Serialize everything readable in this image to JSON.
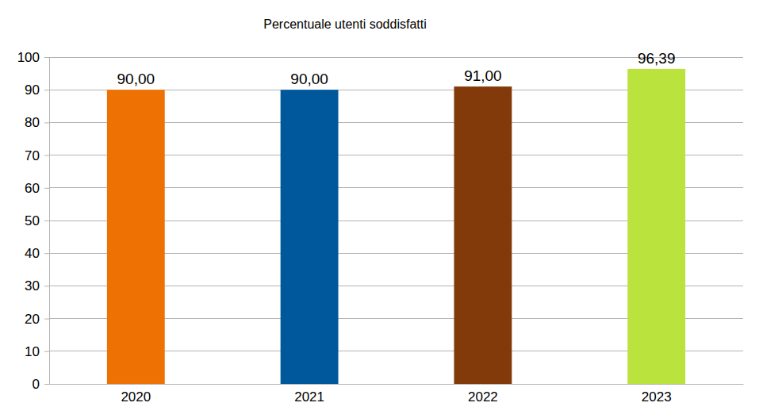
{
  "chart_data": {
    "type": "bar",
    "title": "Percentuale utenti soddisfatti",
    "categories": [
      "2020",
      "2021",
      "2022",
      "2023"
    ],
    "values": [
      90.0,
      90.0,
      91.0,
      96.39
    ],
    "value_labels": [
      "90,00",
      "90,00",
      "91,00",
      "96,39"
    ],
    "colors": [
      "#ee7203",
      "#00589c",
      "#833a0a",
      "#bbe33d"
    ],
    "ylim": [
      0,
      100
    ],
    "yticks": [
      0,
      10,
      20,
      30,
      40,
      50,
      60,
      70,
      80,
      90,
      100
    ],
    "grid": true,
    "data_labels": true
  }
}
